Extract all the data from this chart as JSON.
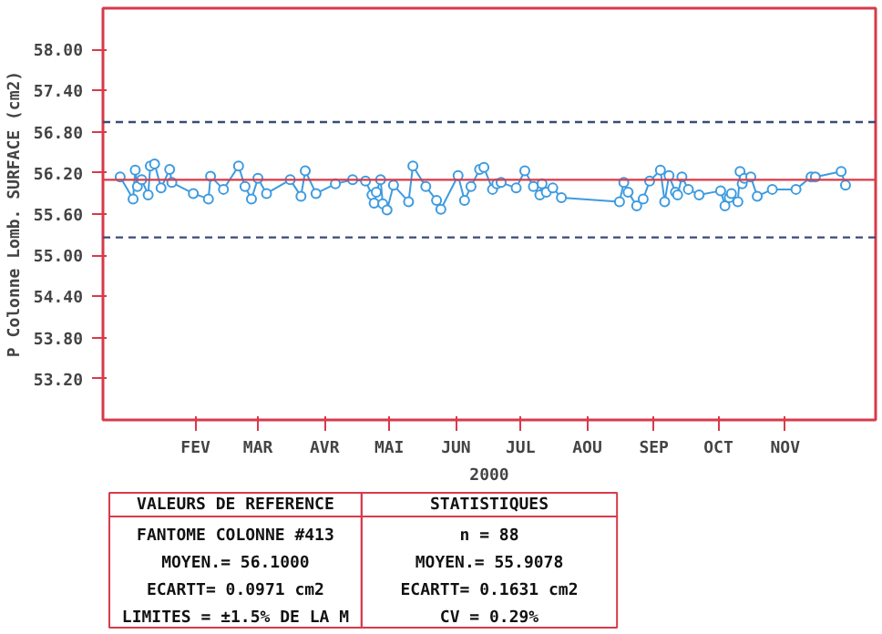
{
  "chart_data": {
    "type": "line",
    "xlabel": "2000",
    "ylabel": "P Colonne Lomb. SURFACE (cm2)",
    "x": [
      "2000-01-11",
      "2000-01-17",
      "2000-01-18",
      "2000-01-19",
      "2000-01-21",
      "2000-01-24",
      "2000-01-25",
      "2000-01-27",
      "2000-01-30",
      "2000-02-03",
      "2000-02-04",
      "2000-02-14",
      "2000-02-21",
      "2000-02-22",
      "2000-02-28",
      "2000-03-06",
      "2000-03-09",
      "2000-03-12",
      "2000-03-15",
      "2000-03-19",
      "2000-03-30",
      "2000-04-04",
      "2000-04-06",
      "2000-04-11",
      "2000-04-20",
      "2000-04-28",
      "2000-05-04",
      "2000-05-07",
      "2000-05-08",
      "2000-05-09",
      "2000-05-11",
      "2000-05-12",
      "2000-05-14",
      "2000-05-17",
      "2000-05-24",
      "2000-05-26",
      "2000-06-01",
      "2000-06-06",
      "2000-06-08",
      "2000-06-16",
      "2000-06-19",
      "2000-06-22",
      "2000-06-26",
      "2000-06-28",
      "2000-07-02",
      "2000-07-04",
      "2000-07-06",
      "2000-07-13",
      "2000-07-17",
      "2000-07-21",
      "2000-07-24",
      "2000-07-25",
      "2000-07-27",
      "2000-07-30",
      "2000-08-03",
      "2000-08-30",
      "2000-09-01",
      "2000-09-03",
      "2000-09-07",
      "2000-09-10",
      "2000-09-13",
      "2000-09-18",
      "2000-09-20",
      "2000-09-22",
      "2000-09-25",
      "2000-09-26",
      "2000-09-28",
      "2000-10-01",
      "2000-10-06",
      "2000-10-16",
      "2000-10-18",
      "2000-10-20",
      "2000-10-21",
      "2000-10-24",
      "2000-10-25",
      "2000-10-26",
      "2000-10-27",
      "2000-10-30",
      "2000-11-02",
      "2000-11-09",
      "2000-11-20",
      "2000-11-27",
      "2000-11-29",
      "2000-12-11",
      "2000-12-13"
    ],
    "series": [
      {
        "color": "#3d9be0",
        "values": [
          56.14,
          55.82,
          56.24,
          56.0,
          56.1,
          55.88,
          56.3,
          56.33,
          55.98,
          56.25,
          56.06,
          55.9,
          55.82,
          56.15,
          55.96,
          56.3,
          56.0,
          55.82,
          56.12,
          55.9,
          56.1,
          55.86,
          56.23,
          55.9,
          56.04,
          56.1,
          56.08,
          55.88,
          55.76,
          55.92,
          56.1,
          55.75,
          55.66,
          56.02,
          55.78,
          56.3,
          56.0,
          55.8,
          55.67,
          56.16,
          55.8,
          56.0,
          56.25,
          56.28,
          55.96,
          56.04,
          56.06,
          55.98,
          56.23,
          56.0,
          55.88,
          56.04,
          55.92,
          55.98,
          55.84,
          55.78,
          56.06,
          55.92,
          55.72,
          55.82,
          56.08,
          56.24,
          55.78,
          56.16,
          55.92,
          55.88,
          56.14,
          55.96,
          55.88,
          55.94,
          55.72,
          55.84,
          55.9,
          55.78,
          56.22,
          56.04,
          56.12,
          56.14,
          55.86,
          55.96,
          55.96,
          56.14,
          56.14,
          56.22,
          56.02
        ]
      }
    ],
    "marker": "circle",
    "line_style": "solid",
    "xlim": [
      "2000-01-03",
      "2000-12-27"
    ],
    "xticks": [
      {
        "value": "2000-02-15",
        "label": "FEV"
      },
      {
        "value": "2000-03-15",
        "label": "MAR"
      },
      {
        "value": "2000-04-15",
        "label": "AVR"
      },
      {
        "value": "2000-05-15",
        "label": "MAI"
      },
      {
        "value": "2000-06-15",
        "label": "JUN"
      },
      {
        "value": "2000-07-15",
        "label": "JUL"
      },
      {
        "value": "2000-08-15",
        "label": "AOU"
      },
      {
        "value": "2000-09-15",
        "label": "SEP"
      },
      {
        "value": "2000-10-15",
        "label": "OCT"
      },
      {
        "value": "2000-11-15",
        "label": "NOV"
      }
    ],
    "ylim": [
      52.6,
      58.6
    ],
    "yticks": [
      {
        "value": 53.2,
        "label": "53.20"
      },
      {
        "value": 53.8,
        "label": "53.80"
      },
      {
        "value": 54.4,
        "label": "54.40"
      },
      {
        "value": 55.0,
        "label": "55.00"
      },
      {
        "value": 55.6,
        "label": "55.60"
      },
      {
        "value": 56.2,
        "label": "56.20"
      },
      {
        "value": 56.8,
        "label": "56.80"
      },
      {
        "value": 57.4,
        "label": "57.40"
      },
      {
        "value": 58.0,
        "label": "58.00"
      }
    ],
    "ref_lines": [
      {
        "axis": "y",
        "value": 56.1,
        "label": null,
        "color": "#d83a4a",
        "line_style": "solid"
      },
      {
        "axis": "y",
        "value": 56.94,
        "label": null,
        "color": "#3a4a7a",
        "line_style": "dashed"
      },
      {
        "axis": "y",
        "value": 55.26,
        "label": null,
        "color": "#3a4a7a",
        "line_style": "dashed"
      }
    ],
    "annotations": [
      "VALEURS DE REFERENCE",
      "FANTOME COLONNE #413",
      "MOYEN.= 56.1000",
      "ECARTT= 0.0971 cm2",
      "LIMITES = ±1.5% DE LA M",
      "STATISTIQUES",
      "n = 88",
      "MOYEN.= 55.9078",
      "ECARTT= 0.1631 cm2",
      "CV = 0.29%"
    ]
  }
}
